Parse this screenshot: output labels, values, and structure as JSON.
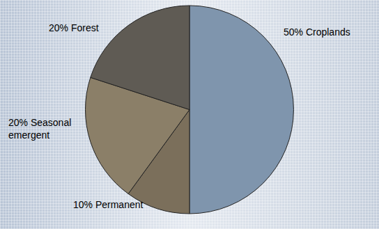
{
  "chart_data": {
    "type": "pie",
    "categories": [
      "Croplands",
      "Permanent",
      "Seasonal emergent",
      "Forest"
    ],
    "values": [
      50,
      10,
      20,
      20
    ],
    "value_labels": [
      "50% Croplands",
      "10% Permanent",
      "20% Seasonal emergent",
      "20% Forest"
    ],
    "colors": [
      "#7f95ad",
      "#7b6f5b",
      "#8b7f68",
      "#5f5b54"
    ],
    "data_labels": true
  }
}
